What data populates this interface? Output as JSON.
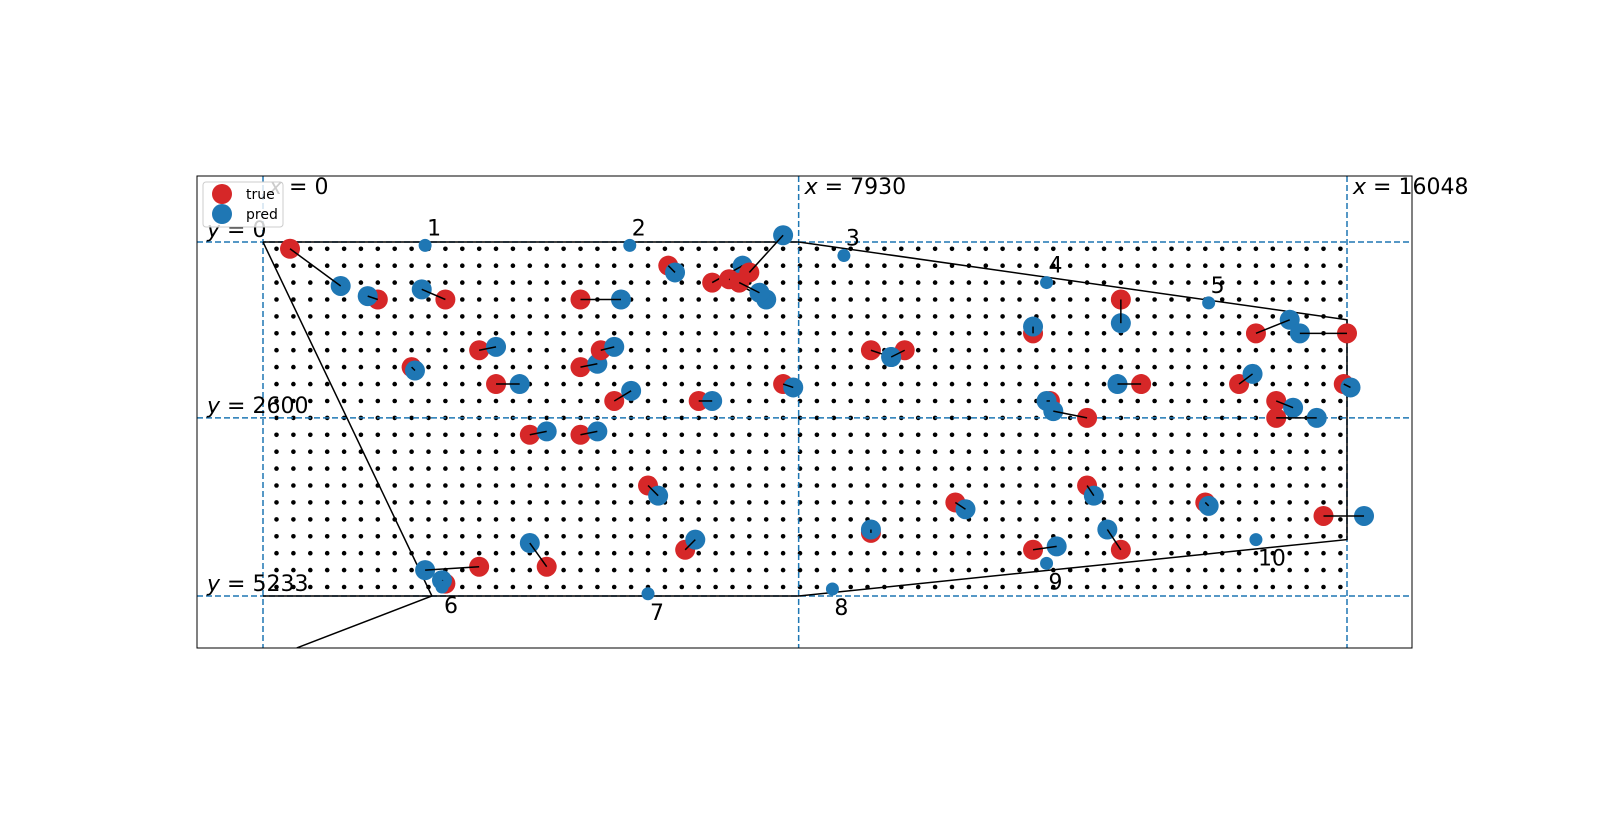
{
  "chart_data": {
    "type": "scatter",
    "title": "",
    "xlabel": "",
    "ylabel": "",
    "xlim": [
      -1000,
      17000
    ],
    "ylim": [
      6000,
      -1000
    ],
    "grid": false,
    "axes_visible": false,
    "legend": {
      "placement": "top-left",
      "entries": [
        {
          "name": "true",
          "color": "#d62728"
        },
        {
          "name": "pred",
          "color": "#1f77b4"
        }
      ]
    },
    "reference_lines": {
      "x": [
        {
          "value": 0,
          "label_var": "x",
          "label_value": "0"
        },
        {
          "value": 7930,
          "label_var": "x",
          "label_value": "7930"
        },
        {
          "value": 16048,
          "label_var": "x",
          "label_value": "16048"
        }
      ],
      "y": [
        {
          "value": 0,
          "label_var": "y",
          "label_value": "0"
        },
        {
          "value": 2600,
          "label_var": "y",
          "label_value": "2600"
        },
        {
          "value": 5233,
          "label_var": "y",
          "label_value": "5233"
        }
      ],
      "color": "#1f77b4",
      "style": "dashed"
    },
    "grid_points": {
      "x_start": 200,
      "x_step": 250,
      "x_end": 16000,
      "y_start": 100,
      "y_step": 250,
      "y_end": 5100,
      "color": "#000000"
    },
    "boundary_polyline": [
      [
        0,
        0
      ],
      [
        7930,
        0
      ],
      [
        16048,
        1150
      ],
      [
        16048,
        4400
      ],
      [
        7930,
        5233
      ],
      [
        0,
        5233
      ]
    ],
    "left_edge_polyline": [
      [
        0,
        0
      ],
      [
        2500,
        5233
      ],
      [
        500,
        6000
      ]
    ],
    "markers": [
      {
        "label": "1",
        "x": 2400,
        "y": 50
      },
      {
        "label": "2",
        "x": 5430,
        "y": 50
      },
      {
        "label": "3",
        "x": 8600,
        "y": 200
      },
      {
        "label": "4",
        "x": 11600,
        "y": 600
      },
      {
        "label": "5",
        "x": 14000,
        "y": 900
      },
      {
        "label": "6",
        "x": 2650,
        "y": 5100
      },
      {
        "label": "7",
        "x": 5700,
        "y": 5200
      },
      {
        "label": "8",
        "x": 8430,
        "y": 5130
      },
      {
        "label": "9",
        "x": 11600,
        "y": 4750
      },
      {
        "label": "10",
        "x": 14700,
        "y": 4400
      }
    ],
    "pairs": [
      {
        "true": [
          400,
          100
        ],
        "pred": [
          1150,
          650
        ]
      },
      {
        "true": [
          1700,
          850
        ],
        "pred": [
          1550,
          800
        ]
      },
      {
        "true": [
          2700,
          850
        ],
        "pred": [
          2350,
          700
        ]
      },
      {
        "true": [
          4700,
          850
        ],
        "pred": [
          5300,
          850
        ]
      },
      {
        "true": [
          6000,
          350
        ],
        "pred": [
          6100,
          450
        ]
      },
      {
        "true": [
          6650,
          600
        ],
        "pred": [
          7100,
          350
        ]
      },
      {
        "true": [
          6900,
          550
        ],
        "pred": [
          7450,
          850
        ]
      },
      {
        "true": [
          7200,
          450
        ],
        "pred": [
          7700,
          -100
        ]
      },
      {
        "true": [
          7050,
          600
        ],
        "pred": [
          7350,
          750
        ]
      },
      {
        "true": [
          2200,
          1850
        ],
        "pred": [
          2250,
          1900
        ]
      },
      {
        "true": [
          3200,
          1600
        ],
        "pred": [
          3450,
          1550
        ]
      },
      {
        "true": [
          3450,
          2100
        ],
        "pred": [
          3800,
          2100
        ]
      },
      {
        "true": [
          4700,
          1850
        ],
        "pred": [
          4950,
          1800
        ]
      },
      {
        "true": [
          5000,
          1600
        ],
        "pred": [
          5200,
          1550
        ]
      },
      {
        "true": [
          5200,
          2350
        ],
        "pred": [
          5450,
          2200
        ]
      },
      {
        "true": [
          6450,
          2350
        ],
        "pred": [
          6650,
          2350
        ]
      },
      {
        "true": [
          7700,
          2100
        ],
        "pred": [
          7850,
          2150
        ]
      },
      {
        "true": [
          3950,
          2850
        ],
        "pred": [
          4200,
          2800
        ]
      },
      {
        "true": [
          4700,
          2850
        ],
        "pred": [
          4950,
          2800
        ]
      },
      {
        "true": [
          5700,
          3600
        ],
        "pred": [
          5850,
          3750
        ]
      },
      {
        "true": [
          6250,
          4550
        ],
        "pred": [
          6400,
          4400
        ]
      },
      {
        "true": [
          3200,
          4800
        ],
        "pred": [
          2400,
          4850
        ]
      },
      {
        "true": [
          4200,
          4800
        ],
        "pred": [
          3950,
          4450
        ]
      },
      {
        "true": [
          2700,
          5050
        ],
        "pred": [
          2650,
          5000
        ]
      },
      {
        "true": [
          9000,
          1600
        ],
        "pred": [
          9300,
          1700
        ]
      },
      {
        "true": [
          9500,
          1600
        ],
        "pred": [
          9300,
          1700
        ]
      },
      {
        "true": [
          10250,
          3850
        ],
        "pred": [
          10400,
          3950
        ]
      },
      {
        "true": [
          9000,
          4300
        ],
        "pred": [
          9000,
          4250
        ]
      },
      {
        "true": [
          11400,
          1350
        ],
        "pred": [
          11400,
          1250
        ]
      },
      {
        "true": [
          12700,
          850
        ],
        "pred": [
          12700,
          1200
        ]
      },
      {
        "true": [
          13000,
          2100
        ],
        "pred": [
          12650,
          2100
        ]
      },
      {
        "true": [
          11650,
          2350
        ],
        "pred": [
          11600,
          2350
        ]
      },
      {
        "true": [
          12200,
          2600
        ],
        "pred": [
          11700,
          2500
        ]
      },
      {
        "true": [
          12200,
          3600
        ],
        "pred": [
          12300,
          3750
        ]
      },
      {
        "true": [
          12700,
          4550
        ],
        "pred": [
          12500,
          4250
        ]
      },
      {
        "true": [
          11400,
          4550
        ],
        "pred": [
          11750,
          4500
        ]
      },
      {
        "true": [
          14700,
          1350
        ],
        "pred": [
          15200,
          1150
        ]
      },
      {
        "true": [
          16048,
          1350
        ],
        "pred": [
          15350,
          1350
        ]
      },
      {
        "true": [
          14450,
          2100
        ],
        "pred": [
          14650,
          1950
        ]
      },
      {
        "true": [
          15000,
          2350
        ],
        "pred": [
          15250,
          2450
        ]
      },
      {
        "true": [
          15000,
          2600
        ],
        "pred": [
          15600,
          2600
        ]
      },
      {
        "true": [
          16000,
          2100
        ],
        "pred": [
          16100,
          2150
        ]
      },
      {
        "true": [
          13950,
          3850
        ],
        "pred": [
          14000,
          3900
        ]
      },
      {
        "true": [
          15700,
          4050
        ],
        "pred": [
          16300,
          4050
        ]
      }
    ]
  }
}
